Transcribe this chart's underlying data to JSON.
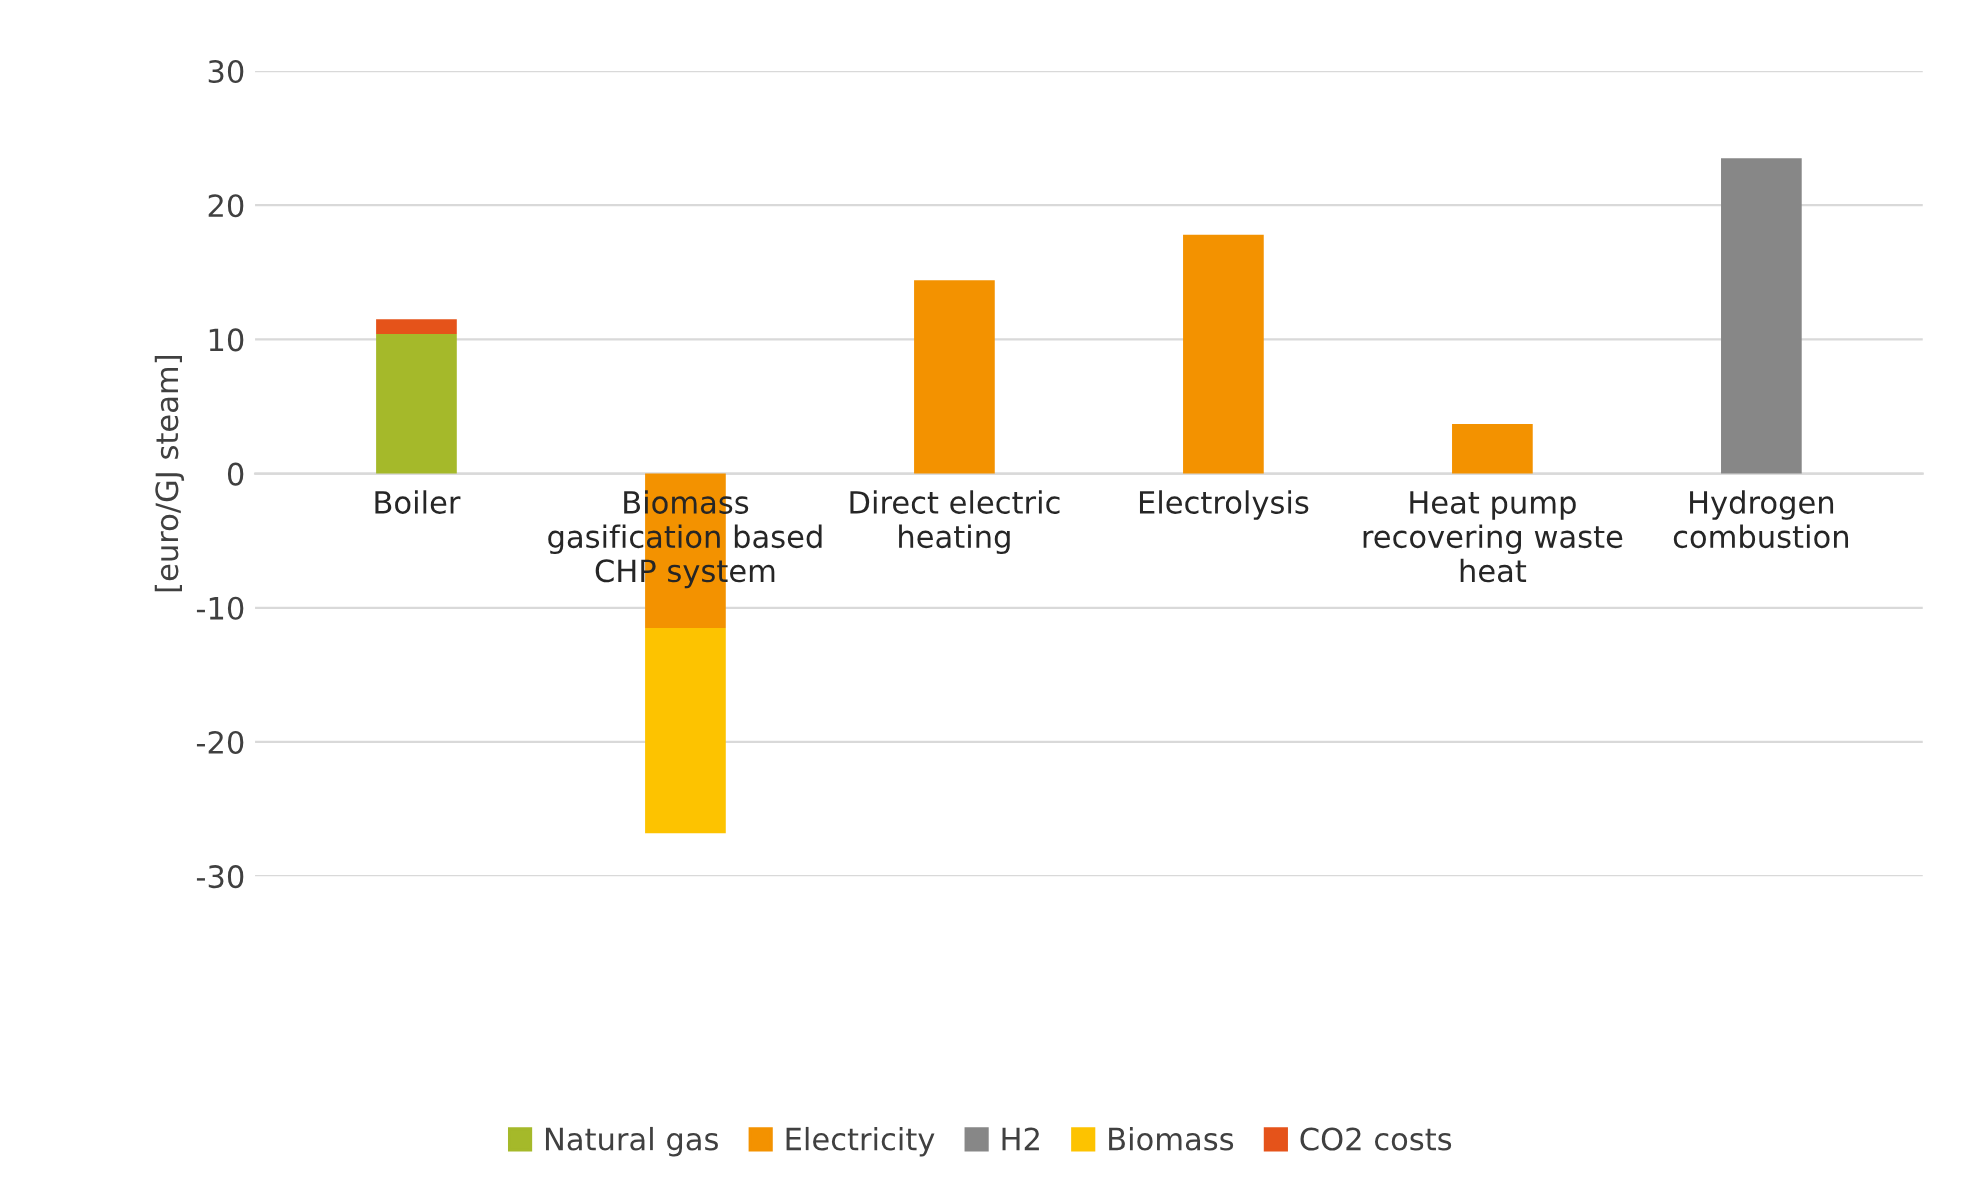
{
  "chart_data": {
    "type": "bar",
    "stacked": true,
    "ylabel": "[euro/GJ steam]",
    "categories": [
      "Boiler",
      "Biomass\ngasification based\nCHP system",
      "Direct electric\nheating",
      "Electrolysis",
      "Heat pump\nrecovering waste\nheat",
      "Hydrogen\ncombustion"
    ],
    "series": [
      {
        "name": "Natural gas",
        "color": "#a5b92a",
        "values": [
          10.4,
          null,
          null,
          null,
          null,
          null
        ]
      },
      {
        "name": "Electricity",
        "color": "#f39200",
        "values": [
          null,
          -11.5,
          14.4,
          17.8,
          3.7,
          null
        ]
      },
      {
        "name": "H2",
        "color": "#878787",
        "values": [
          null,
          null,
          null,
          null,
          null,
          23.5
        ]
      },
      {
        "name": "Biomass",
        "color": "#fdc300",
        "values": [
          null,
          -15.3,
          null,
          null,
          null,
          null
        ]
      },
      {
        "name": "CO2 costs",
        "color": "#e5531a",
        "values": [
          1.1,
          null,
          null,
          null,
          null,
          null
        ]
      }
    ],
    "ylim": [
      -30,
      30
    ],
    "yticks": [
      -30,
      -20,
      -10,
      0,
      10,
      20,
      30
    ],
    "grid": "y",
    "legend": "bottom"
  }
}
